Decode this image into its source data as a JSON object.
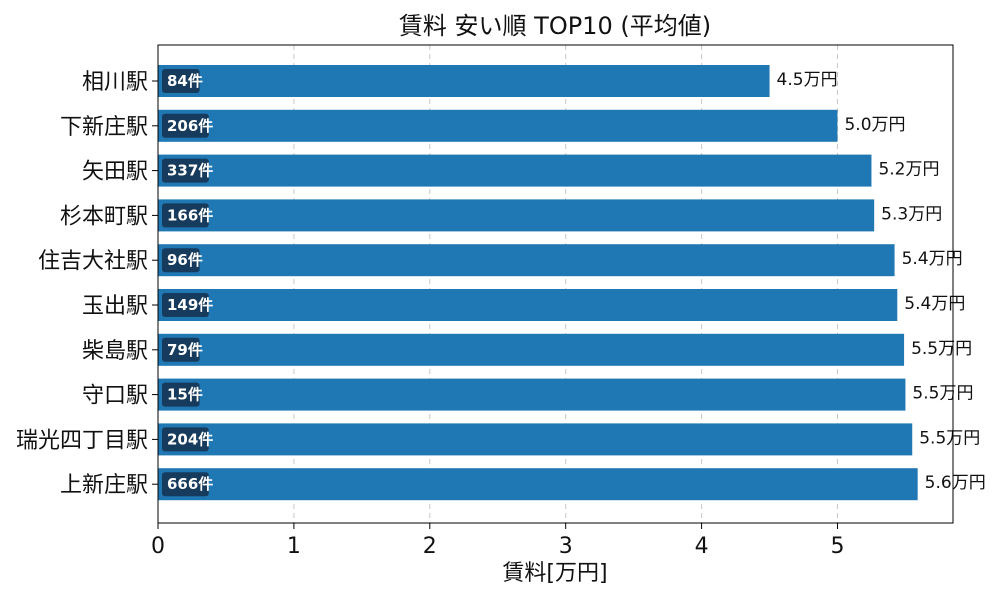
{
  "chart_data": {
    "type": "bar",
    "orientation": "horizontal",
    "title": "賃料 安い順 TOP10 (平均値)",
    "xlabel": "賃料[万円]",
    "ylabel": "",
    "xlim": [
      0,
      5.85
    ],
    "xticks": [
      "0",
      "1",
      "2",
      "3",
      "4",
      "5"
    ],
    "grid": "x-dashed",
    "bar_color": "#1f77b4",
    "badge_color": "#173b5c",
    "categories": [
      "相川駅",
      "下新庄駅",
      "矢田駅",
      "杉本町駅",
      "住吉大社駅",
      "玉出駅",
      "柴島駅",
      "守口駅",
      "瑞光四丁目駅",
      "上新庄駅"
    ],
    "values": [
      4.5,
      5.0,
      5.25,
      5.27,
      5.42,
      5.44,
      5.49,
      5.5,
      5.55,
      5.59
    ],
    "value_labels": [
      "4.5万円",
      "5.0万円",
      "5.2万円",
      "5.3万円",
      "5.4万円",
      "5.4万円",
      "5.5万円",
      "5.5万円",
      "5.5万円",
      "5.6万円"
    ],
    "count_labels": [
      "84件",
      "206件",
      "337件",
      "166件",
      "96件",
      "149件",
      "79件",
      "15件",
      "204件",
      "666件"
    ]
  }
}
